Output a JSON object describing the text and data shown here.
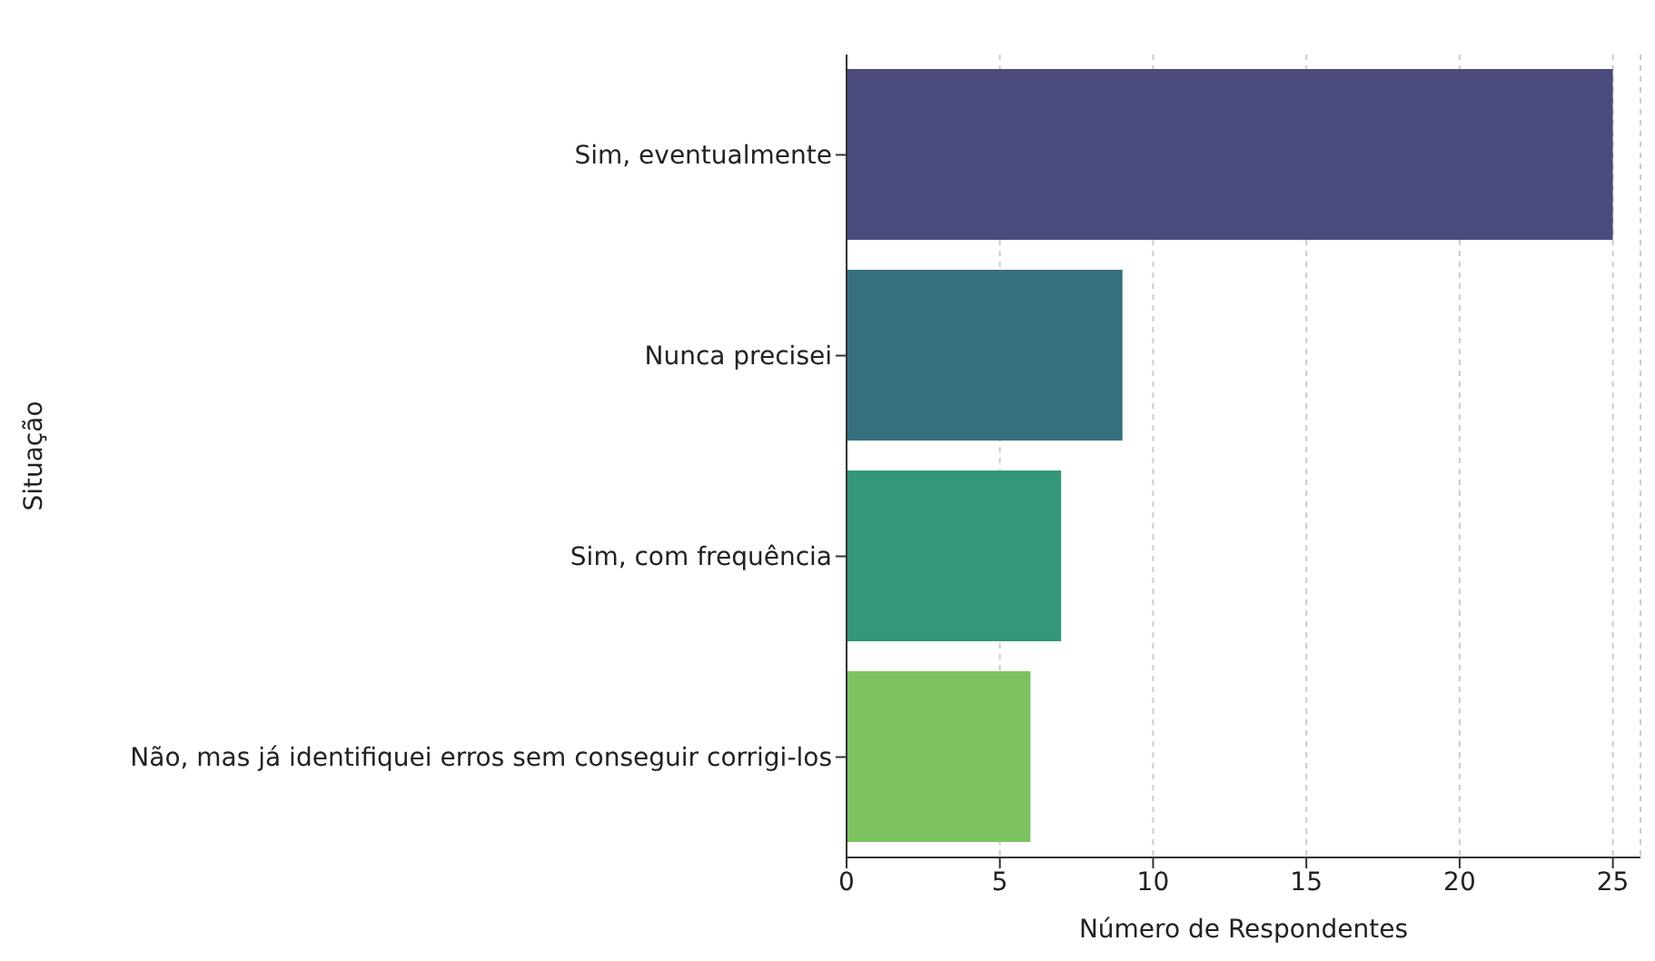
{
  "chart_data": {
    "type": "bar",
    "orientation": "horizontal",
    "xlabel": "Número de Respondentes",
    "ylabel": "Situação",
    "categories": [
      "Sim, eventualmente",
      "Nunca precisei",
      "Sim, com frequência",
      "Não, mas já identifiquei erros sem conseguir corrigi-los"
    ],
    "values": [
      25,
      9,
      7,
      6
    ],
    "colors": [
      "#4a4a7c",
      "#36707e",
      "#35977a",
      "#7dc260"
    ],
    "xlim": [
      0,
      25.9
    ],
    "xticks": [
      0,
      5,
      10,
      15,
      20,
      25
    ],
    "grid": "x"
  }
}
